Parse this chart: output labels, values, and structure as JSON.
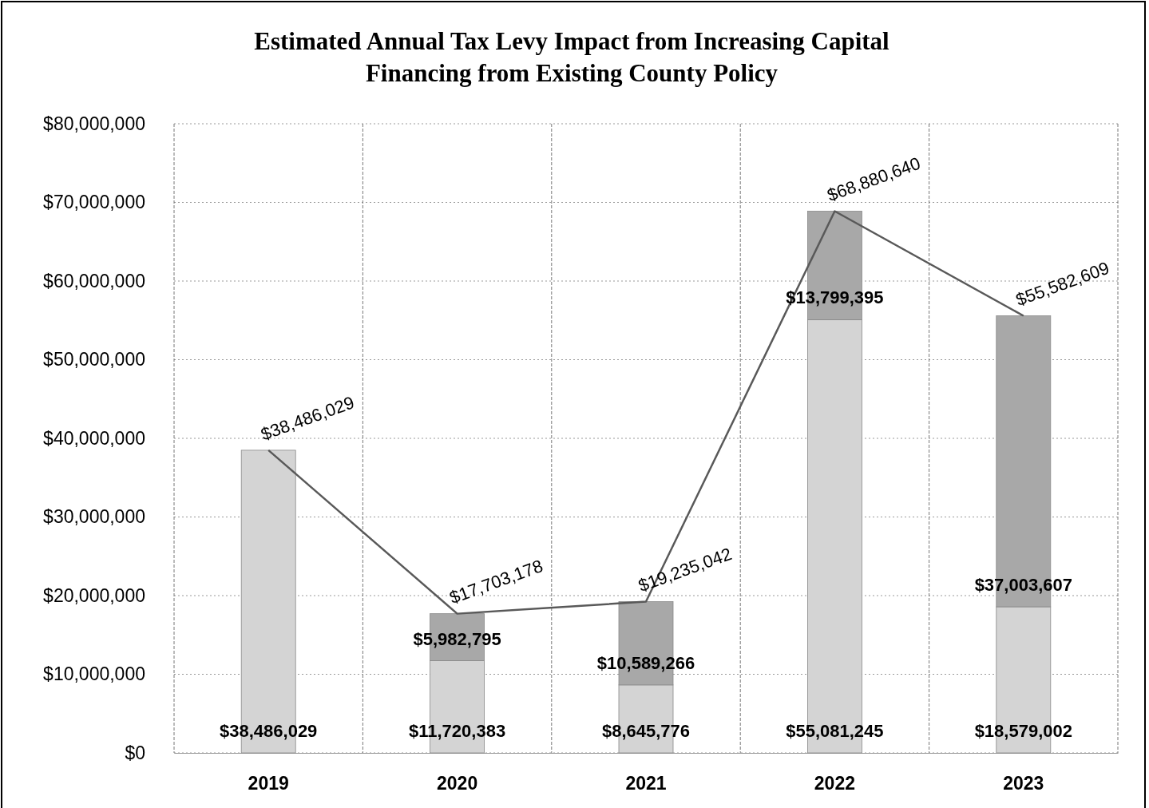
{
  "chart_data": {
    "type": "bar",
    "stacked": true,
    "title": "Estimated Annual Tax Levy Impact from Increasing Capital Financing from Existing County Policy",
    "categories": [
      "2019",
      "2020",
      "2021",
      "2022",
      "2023"
    ],
    "series": [
      {
        "color": "#d4d4d4",
        "values": [
          38486029,
          11720383,
          8645776,
          55081245,
          18579002
        ],
        "value_labels": [
          "$38,486,029",
          "$11,720,383",
          "$8,645,776",
          "$55,081,245",
          "$18,579,002"
        ]
      },
      {
        "color": "#a8a8a8",
        "values": [
          null,
          5982795,
          10589266,
          13799395,
          37003607
        ],
        "value_labels": [
          null,
          "$5,982,795",
          "$10,589,266",
          "$13,799,395",
          "$37,003,607"
        ]
      },
      {
        "type": "line",
        "color": "#595959",
        "values": [
          38486029,
          17703178,
          19235042,
          68880640,
          55582609
        ],
        "value_labels": [
          "$38,486,029",
          "$17,703,178",
          "$19,235,042",
          "$68,880,640",
          "$55,582,609"
        ]
      }
    ],
    "ylim": [
      0,
      80000000
    ],
    "yticks": [
      {
        "value": 0,
        "label": "$0"
      },
      {
        "value": 10000000,
        "label": "$10,000,000"
      },
      {
        "value": 20000000,
        "label": "$20,000,000"
      },
      {
        "value": 30000000,
        "label": "$30,000,000"
      },
      {
        "value": 40000000,
        "label": "$40,000,000"
      },
      {
        "value": 50000000,
        "label": "$50,000,000"
      },
      {
        "value": 60000000,
        "label": "$60,000,000"
      },
      {
        "value": 70000000,
        "label": "$70,000,000"
      },
      {
        "value": 80000000,
        "label": "$80,000,000"
      }
    ],
    "grid": true
  }
}
